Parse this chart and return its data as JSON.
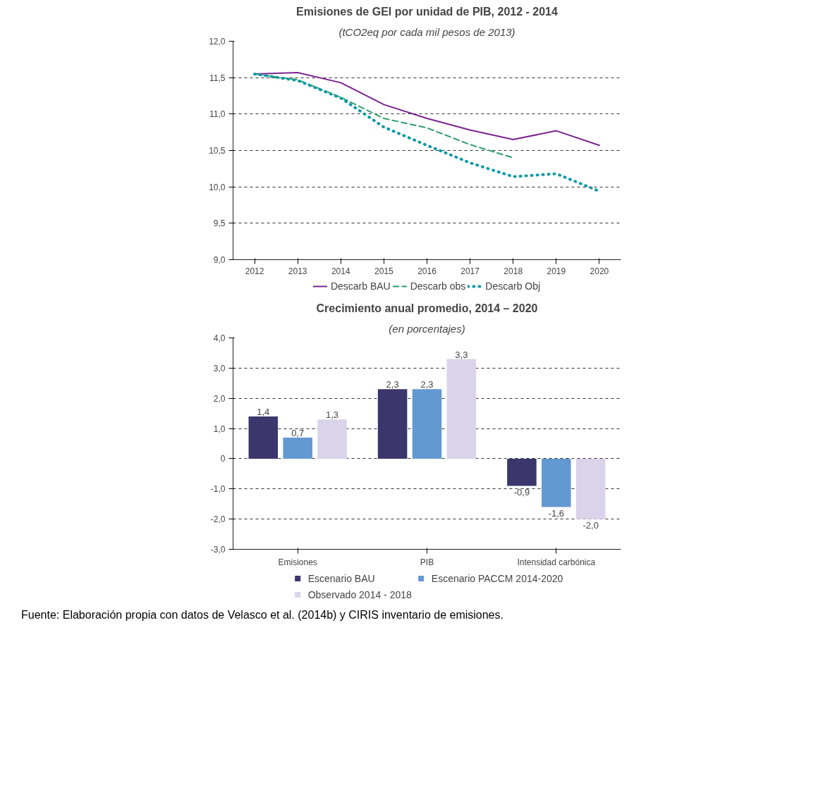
{
  "chart_data": [
    {
      "type": "line",
      "title": "Emisiones de GEI por unidad de PIB, 2012 - 2014",
      "subtitle": "(tCO2eq por cada mil pesos de 2013)",
      "categories": [
        "2012",
        "2013",
        "2014",
        "2015",
        "2016",
        "2017",
        "2018",
        "2019",
        "2020"
      ],
      "series": [
        {
          "name": "Descarb BAU",
          "color": "#7b2590",
          "line_style": "solid",
          "values": [
            11.55,
            11.57,
            11.43,
            11.13,
            10.94,
            10.78,
            10.65,
            10.77,
            10.57
          ]
        },
        {
          "name": "Descarb obs",
          "color": "#2e9e6e",
          "line_style": "dashed",
          "values": [
            11.55,
            11.47,
            11.23,
            10.94,
            10.81,
            10.58,
            10.4,
            null,
            null
          ]
        },
        {
          "name": "Descarb Obj",
          "color": "#0e9aa7",
          "line_style": "dotted",
          "values": [
            11.55,
            11.46,
            11.22,
            10.82,
            10.57,
            10.33,
            10.14,
            10.18,
            9.94
          ]
        }
      ],
      "ylim": [
        9.0,
        12.0
      ],
      "yticks": [
        {
          "value": 9.0,
          "label": "9,0"
        },
        {
          "value": 9.5,
          "label": "9,5"
        },
        {
          "value": 10.0,
          "label": "10,0"
        },
        {
          "value": 10.5,
          "label": "10,5"
        },
        {
          "value": 11.0,
          "label": "11,0"
        },
        {
          "value": 11.5,
          "label": "11,5"
        },
        {
          "value": 12.0,
          "label": "12,0"
        }
      ],
      "grid": "y",
      "legend": "bottom",
      "marker": "none"
    },
    {
      "type": "bar",
      "title": "Crecimiento anual promedio, 2014 – 2020",
      "subtitle": "(en porcentajes)",
      "categories": [
        "Emisiones",
        "PIB",
        "Intensidad carbónica"
      ],
      "series": [
        {
          "name": "Escenario BAU",
          "color": "#3b366c",
          "values": [
            1.4,
            2.3,
            -0.9
          ],
          "value_labels": [
            "1,4",
            "2,3",
            "-0,9"
          ]
        },
        {
          "name": "Escenario PACCM 2014-2020",
          "color": "#6399d2",
          "values": [
            0.7,
            2.3,
            -1.6
          ],
          "value_labels": [
            "0,7",
            "2,3",
            "-1,6"
          ]
        },
        {
          "name": "Observado 2014 - 2018",
          "color": "#d9d4ea",
          "values": [
            1.3,
            3.3,
            -2.0
          ],
          "value_labels": [
            "1,3",
            "3,3",
            "-2,0"
          ]
        }
      ],
      "ylim": [
        -3.0,
        4.0
      ],
      "yticks": [
        {
          "value": -3.0,
          "label": "-3,0"
        },
        {
          "value": -2.0,
          "label": "-2,0"
        },
        {
          "value": -1.0,
          "label": "-1,0"
        },
        0,
        {
          "value": 1.0,
          "label": "1,0"
        },
        {
          "value": 2.0,
          "label": "2,0"
        },
        {
          "value": 3.0,
          "label": "3,0"
        },
        {
          "value": 4.0,
          "label": "4,0"
        }
      ],
      "grid": "y",
      "legend": "bottom",
      "annotations": [
        "Fuente: Elaboración propia con datos de Velasco et al. (2014b) y CIRIS inventario de emisiones."
      ]
    }
  ]
}
